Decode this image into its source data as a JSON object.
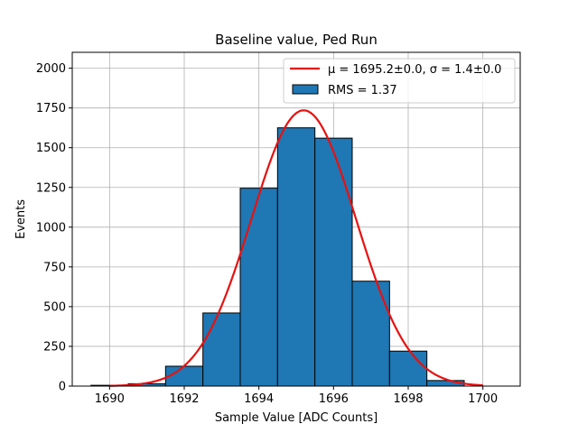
{
  "chart_data": {
    "type": "bar",
    "title": "Baseline value, Ped Run",
    "xlabel": "Sample Value [ADC Counts]",
    "ylabel": "Events",
    "xlim": [
      1689.0,
      1701.0
    ],
    "ylim": [
      0,
      2100
    ],
    "xticks": [
      1690,
      1692,
      1694,
      1696,
      1698,
      1700
    ],
    "yticks": [
      0,
      250,
      500,
      750,
      1000,
      1250,
      1500,
      1750,
      2000
    ],
    "grid": true,
    "legend_position": "top-right",
    "histogram": {
      "bin_edges": [
        1689.5,
        1690.5,
        1691.5,
        1692.5,
        1693.5,
        1694.5,
        1695.5,
        1696.5,
        1697.5,
        1698.5,
        1699.5
      ],
      "counts": [
        5,
        15,
        125,
        460,
        1245,
        1625,
        1560,
        660,
        220,
        35
      ],
      "color": "#1f77b4",
      "edge_color": "#000000",
      "legend": "RMS = 1.37"
    },
    "fit": {
      "mu": 1695.2,
      "sigma": 1.4,
      "peak": 1735,
      "x_range": [
        1690,
        1700
      ],
      "color": "#e8110f",
      "legend": "μ = 1695.2±0.0, σ = 1.4±0.0"
    }
  }
}
